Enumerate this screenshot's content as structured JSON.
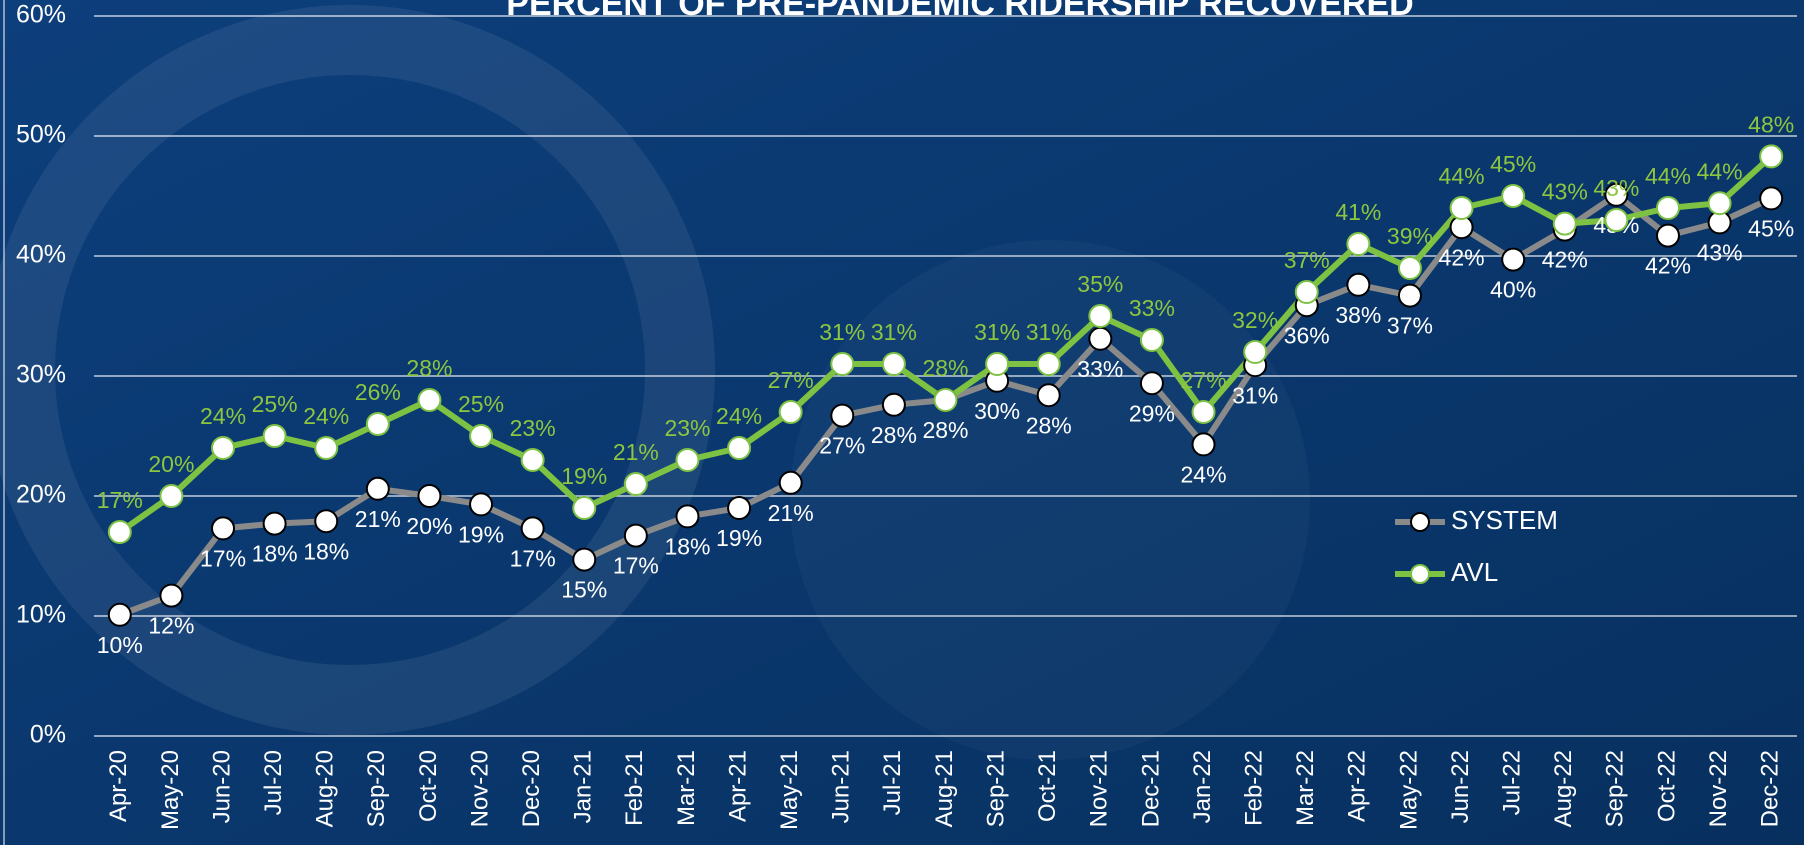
{
  "chart_data": {
    "type": "line",
    "title": "PERCENT OF PRE-PANDEMIC RIDERSHIP RECOVERED",
    "categories": [
      "Apr-20",
      "May-20",
      "Jun-20",
      "Jul-20",
      "Aug-20",
      "Sep-20",
      "Oct-20",
      "Nov-20",
      "Dec-20",
      "Jan-21",
      "Feb-21",
      "Mar-21",
      "Apr-21",
      "May-21",
      "Jun-21",
      "Jul-21",
      "Aug-21",
      "Sep-21",
      "Oct-21",
      "Nov-21",
      "Dec-21",
      "Jan-22",
      "Feb-22",
      "Mar-22",
      "Apr-22",
      "May-22",
      "Jun-22",
      "Jul-22",
      "Aug-22",
      "Sep-22",
      "Oct-22",
      "Nov-22",
      "Dec-22"
    ],
    "series": [
      {
        "name": "SYSTEM",
        "color": "#8a8a8a",
        "marker_color": "#ffffff",
        "label_color": "#ffffff",
        "label_position": "below",
        "values": [
          10.1,
          11.7,
          17.3,
          17.7,
          17.9,
          20.6,
          20.0,
          19.3,
          17.3,
          14.7,
          16.7,
          18.3,
          19.0,
          21.1,
          26.7,
          27.6,
          28.0,
          29.6,
          28.4,
          33.1,
          29.4,
          24.3,
          30.9,
          35.9,
          37.6,
          36.7,
          42.4,
          39.7,
          42.2,
          45.1,
          41.7,
          42.8,
          44.8
        ],
        "value_labels": [
          "10%",
          "12%",
          "17%",
          "18%",
          "18%",
          "21%",
          "20%",
          "19%",
          "17%",
          "15%",
          "17%",
          "18%",
          "19%",
          "21%",
          "27%",
          "28%",
          "28%",
          "30%",
          "28%",
          "33%",
          "29%",
          "24%",
          "31%",
          "36%",
          "38%",
          "37%",
          "42%",
          "40%",
          "42%",
          "45%",
          "42%",
          "43%",
          "45%"
        ]
      },
      {
        "name": "AVL",
        "color": "#7dc242",
        "marker_color": "#ffffff",
        "label_color": "#8dc63f",
        "label_position": "above",
        "values": [
          17,
          20,
          24,
          25,
          24,
          26,
          28,
          25,
          23,
          19,
          21,
          23,
          24,
          27,
          31,
          31,
          28,
          31,
          31,
          35,
          33,
          27,
          32,
          37,
          41,
          39,
          44,
          45,
          42.7,
          43,
          44,
          44.4,
          48.3
        ],
        "value_labels": [
          "17%",
          "20%",
          "24%",
          "25%",
          "24%",
          "26%",
          "28%",
          "25%",
          "23%",
          "19%",
          "21%",
          "23%",
          "24%",
          "27%",
          "31%",
          "31%",
          "28%",
          "31%",
          "31%",
          "35%",
          "33%",
          "27%",
          "32%",
          "37%",
          "41%",
          "39%",
          "44%",
          "45%",
          "43%",
          "43%",
          "44%",
          "44%",
          "48%"
        ]
      }
    ],
    "ylim": [
      0,
      60
    ],
    "yticks": [
      {
        "value": 0,
        "label": "0%"
      },
      {
        "value": 10,
        "label": "10%"
      },
      {
        "value": 20,
        "label": "20%"
      },
      {
        "value": 30,
        "label": "30%"
      },
      {
        "value": 40,
        "label": "40%"
      },
      {
        "value": 50,
        "label": "50%"
      },
      {
        "value": 60,
        "label": "60%"
      }
    ],
    "grid": true,
    "legend": "right"
  }
}
